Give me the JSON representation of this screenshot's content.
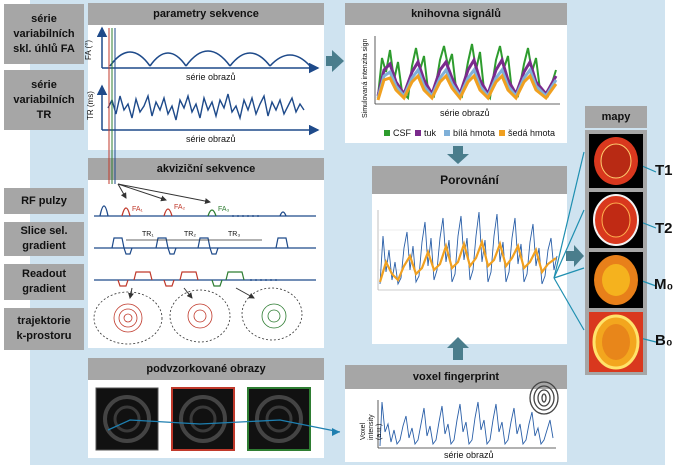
{
  "labels": {
    "fa_series": "série variabilních skl. úhlů FA",
    "tr_series": "série variabilních TR",
    "rf_pulses": "RF pulzy",
    "slice_gradient": "Slice sel. gradient",
    "readout_gradient": "Readout gradient",
    "kspace_trajectory": "trajektorie k-prostoru"
  },
  "headers": {
    "sequence_params": "parametry sekvence",
    "signal_library": "knihovna signálů",
    "acquisition_sequence": "akviziční sekvence",
    "comparison": "Porovnání",
    "undersampled_images": "podvzorkované obrazy",
    "voxel_fingerprint": "voxel fingerprint",
    "maps": "mapy"
  },
  "axes": {
    "fa_y": "FA (°)",
    "tr_y": "TR (ms)",
    "image_series": "série obrazů",
    "sim_signal_y": "Simulovaná intenzita sign",
    "voxel_y": "Voxel intensity (a.u.)"
  },
  "legend": [
    {
      "name": "CSF",
      "color": "#2e9c2e"
    },
    {
      "name": "tuk",
      "color": "#7a2a8c"
    },
    {
      "name": "bílá hmota",
      "color": "#7fb0d8"
    },
    {
      "name": "šedá hmota",
      "color": "#f0a020"
    }
  ],
  "pulse_labels": {
    "fa1": "FA₁",
    "fa2": "FA₂",
    "fa3": "FA₃"
  },
  "tr_labels": {
    "tr1": "TR₁",
    "tr2": "TR₂",
    "tr3": "TR₃"
  },
  "map_labels": {
    "t1": "T1",
    "t2": "T2",
    "m0": "M₀",
    "b0": "B₀"
  },
  "colors": {
    "background": "#cfe3f0",
    "header": "#a6a6a6",
    "arrow": "#4a7d8c",
    "fingerprint_line": "#2a5fa8",
    "orange_fit": "#f0a020"
  }
}
